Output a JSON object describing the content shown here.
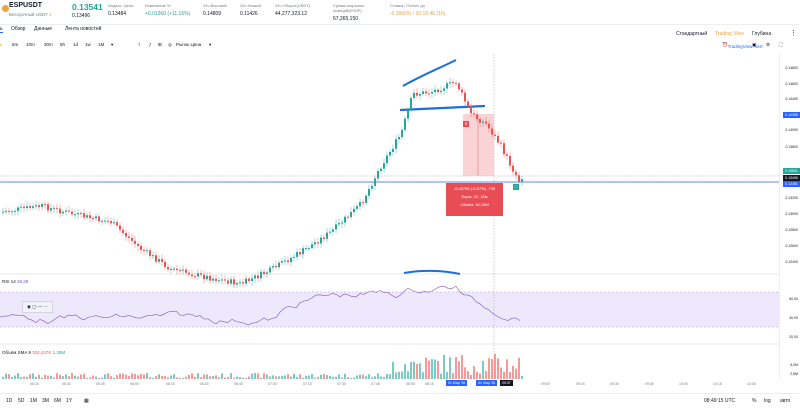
{
  "header": {
    "symbol": "ESPUSDT",
    "exchange": "Бессрочный USDT",
    "exchange_suffix": "4",
    "price_big": "0.13541",
    "price_small": "0.13496",
    "stats": [
      {
        "label": "Индекс. Цена",
        "value": "0.13484",
        "tone": ""
      },
      {
        "label": "Изменение %",
        "value": "+0.01360 (+11.16%)",
        "tone": "g"
      },
      {
        "label": "24ч Высокий",
        "value": "0.14809",
        "tone": ""
      },
      {
        "label": "24ч Низкий",
        "value": "0.11426",
        "tone": ""
      },
      {
        "label": "24ч Оборот(USDT)",
        "value": "44,277,323.12",
        "tone": ""
      },
      {
        "label": "Сумма открытых позиций(ESDP)",
        "value": "67,265,150",
        "tone": ""
      },
      {
        "label": "Ставка / Отсчет до",
        "value": "-0.3900% / 00:10:46 (1h)",
        "tone": "o"
      }
    ]
  },
  "tabs": [
    "ь",
    "Обзор",
    "Данные",
    "Лента новостей"
  ],
  "view_modes": [
    "Стандартный",
    "Trading View",
    "Глубина"
  ],
  "toolbar": {
    "intervals": [
      "ь",
      "6m",
      "10m",
      "30m",
      "5h",
      "1d",
      "1w",
      "1M"
    ],
    "active_interval": "ь",
    "chart_type": "Рынок Цена",
    "tv_alert": "TradingView Alert"
  },
  "price_axis": {
    "ticks": [
      "0.14800",
      "0.14600",
      "0.14400",
      "0.14200",
      "0.14000",
      "0.13800",
      "0.13600",
      "0.13400",
      "0.13200",
      "0.13000",
      "0.12800",
      "0.12600",
      "0.12400"
    ],
    "label_hi": "0.14358",
    "label_mid": "0.13541",
    "label_cur": "0.13496",
    "label_lo": "0.13451",
    "rsi_ticks": [
      "80,00",
      "60,00",
      "40,00",
      "20,00"
    ],
    "vol_ticks": [
      "5,0M",
      "2,5M"
    ]
  },
  "rsi": {
    "label": "RSI 14",
    "value": "38,28"
  },
  "volume": {
    "label": "Объём SMA 9",
    "v1": "324,437K",
    "v2": "1,35M"
  },
  "trade": {
    "marker": "S",
    "line1": "-0,00795 (-5,57%) -795",
    "line2": "Бары: 32, 15м",
    "line3": "Объём: 16,15M"
  },
  "time_axis": {
    "ticks": [
      "05:15",
      "05:30",
      "05:45",
      "06:00",
      "06:15",
      "06:30",
      "06:45",
      "07:00",
      "07:15",
      "07:30",
      "07:45",
      "08:00",
      "08:15",
      "09:00",
      "09:15",
      "09:30",
      "09:45",
      "10:00",
      "10:15",
      "10:30"
    ],
    "label_a": "01 Мар '26",
    "label_b": "01 Мар '26",
    "label_c": "09:37"
  },
  "bottom": {
    "ranges": [
      "1D",
      "5D",
      "1M",
      "3M",
      "6M",
      "1Y"
    ],
    "clock": "08:49:15 UTC",
    "percent": "%",
    "log": "log",
    "auto": "авто"
  },
  "colors": {
    "up": "#26a69a",
    "down": "#ef5350",
    "accent": "#2962ff",
    "trade": "#e84c55"
  }
}
